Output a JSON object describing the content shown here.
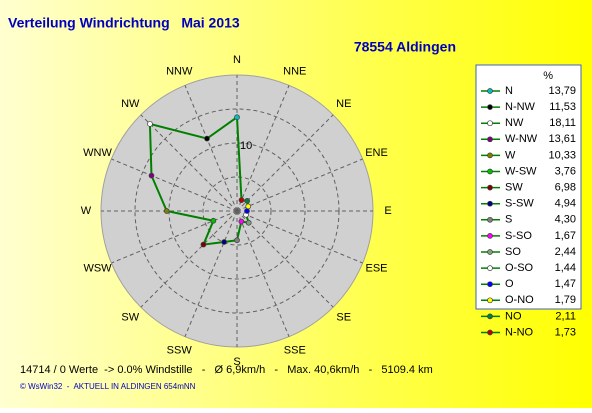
{
  "chart_data": {
    "type": "radar",
    "title": "Verteilung Windrichtung   Mai 2013",
    "subtitle": "78554 Aldingen",
    "directions": [
      "N",
      "NNE",
      "NE",
      "ENE",
      "E",
      "ESE",
      "SE",
      "SSE",
      "S",
      "SSW",
      "SW",
      "WSW",
      "W",
      "WNW",
      "NW",
      "NNW"
    ],
    "legend_header": "%",
    "categories": [
      "N",
      "N-NW",
      "NW",
      "W-NW",
      "W",
      "W-SW",
      "SW",
      "S-SW",
      "S",
      "S-SO",
      "SO",
      "O-SO",
      "O",
      "O-NO",
      "NO",
      "N-NO"
    ],
    "values": [
      13.79,
      11.53,
      18.11,
      13.61,
      10.33,
      3.76,
      6.98,
      4.94,
      4.3,
      1.67,
      2.44,
      1.44,
      1.47,
      1.79,
      2.11,
      1.73
    ],
    "value_labels": [
      "13,79",
      "11,53",
      "18,11",
      "13,61",
      "10,33",
      "3,76",
      "6,98",
      "4,94",
      "4,30",
      "1,67",
      "2,44",
      "1,44",
      "1,47",
      "1,79",
      "2,11",
      "1,73"
    ],
    "colors": [
      "#00c0c0",
      "#000000",
      "#ffffff",
      "#800080",
      "#808000",
      "#00c000",
      "#800000",
      "#000080",
      "#808080",
      "#ff00ff",
      "#80a080",
      "#ffffff",
      "#0000ff",
      "#ffff00",
      "#008040",
      "#c00000"
    ],
    "line_color": "#008000",
    "rlim": [
      0,
      20
    ],
    "rgrid": [
      5,
      10,
      15
    ],
    "rticks": [
      10
    ],
    "footer": "14714 / 0 Werte  -> 0.0% Windstille   -   Ø 6,9km/h   -   Max. 40,6km/h   -   5109.4 km",
    "credit": "© WsWin32  -  AKTUELL IN ALDINGEN 654mNN"
  }
}
